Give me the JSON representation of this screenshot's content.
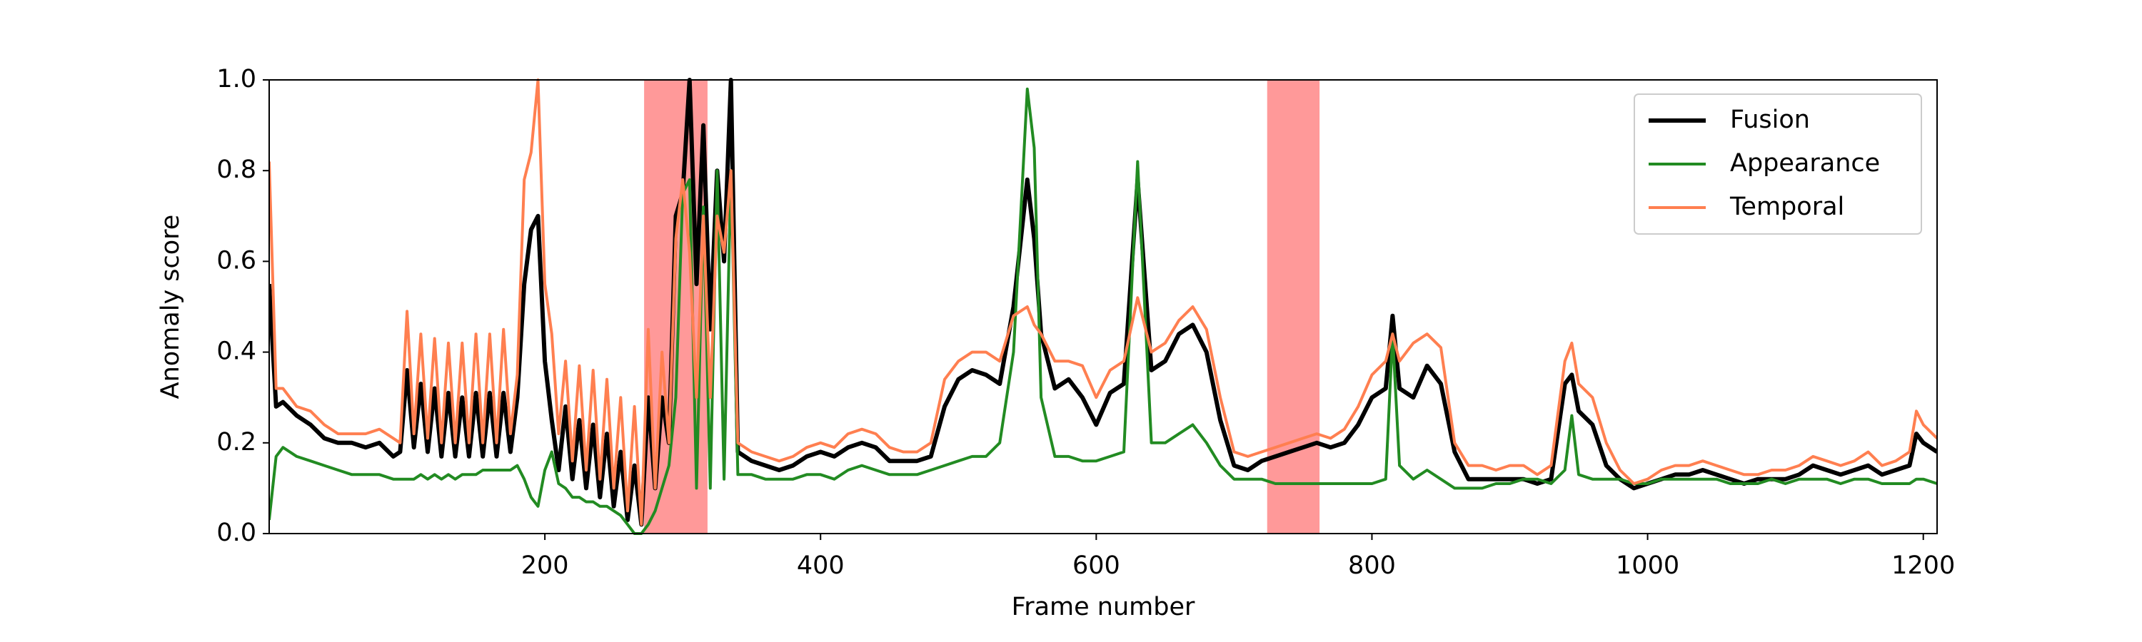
{
  "chart_data": {
    "type": "line",
    "x_label": "Frame number",
    "y_label": "Anomaly score",
    "x": [
      0,
      5,
      10,
      20,
      30,
      40,
      50,
      60,
      70,
      80,
      90,
      95,
      100,
      105,
      110,
      115,
      120,
      125,
      130,
      135,
      140,
      145,
      150,
      155,
      160,
      165,
      170,
      175,
      180,
      185,
      190,
      195,
      200,
      205,
      210,
      215,
      220,
      225,
      230,
      235,
      240,
      245,
      250,
      255,
      260,
      265,
      270,
      275,
      280,
      285,
      290,
      295,
      300,
      305,
      310,
      315,
      320,
      325,
      330,
      335,
      340,
      350,
      360,
      370,
      380,
      390,
      400,
      410,
      420,
      430,
      440,
      450,
      460,
      470,
      480,
      490,
      500,
      510,
      520,
      530,
      540,
      550,
      555,
      560,
      570,
      580,
      590,
      600,
      610,
      620,
      630,
      640,
      650,
      660,
      670,
      680,
      690,
      700,
      710,
      720,
      730,
      740,
      750,
      760,
      770,
      780,
      790,
      800,
      810,
      815,
      820,
      830,
      840,
      850,
      860,
      870,
      880,
      890,
      900,
      910,
      920,
      930,
      940,
      945,
      950,
      960,
      970,
      980,
      990,
      1000,
      1010,
      1020,
      1030,
      1040,
      1050,
      1060,
      1070,
      1080,
      1090,
      1100,
      1110,
      1120,
      1130,
      1140,
      1150,
      1160,
      1170,
      1180,
      1190,
      1195,
      1200,
      1210
    ],
    "series": [
      {
        "name": "Fusion",
        "color": "#000000",
        "width": 3,
        "values": [
          0.55,
          0.28,
          0.29,
          0.26,
          0.24,
          0.21,
          0.2,
          0.2,
          0.19,
          0.2,
          0.17,
          0.18,
          0.36,
          0.19,
          0.33,
          0.18,
          0.32,
          0.17,
          0.31,
          0.17,
          0.3,
          0.17,
          0.31,
          0.17,
          0.31,
          0.17,
          0.31,
          0.18,
          0.3,
          0.55,
          0.67,
          0.7,
          0.38,
          0.25,
          0.14,
          0.28,
          0.12,
          0.25,
          0.1,
          0.24,
          0.08,
          0.22,
          0.06,
          0.18,
          0.03,
          0.15,
          0.02,
          0.3,
          0.1,
          0.3,
          0.2,
          0.7,
          0.75,
          1.0,
          0.55,
          0.9,
          0.45,
          0.8,
          0.6,
          1.0,
          0.18,
          0.16,
          0.15,
          0.14,
          0.15,
          0.17,
          0.18,
          0.17,
          0.19,
          0.2,
          0.19,
          0.16,
          0.16,
          0.16,
          0.17,
          0.28,
          0.34,
          0.36,
          0.35,
          0.33,
          0.5,
          0.78,
          0.65,
          0.44,
          0.32,
          0.34,
          0.3,
          0.24,
          0.31,
          0.33,
          0.78,
          0.36,
          0.38,
          0.44,
          0.46,
          0.4,
          0.25,
          0.15,
          0.14,
          0.16,
          0.17,
          0.18,
          0.19,
          0.2,
          0.19,
          0.2,
          0.24,
          0.3,
          0.32,
          0.48,
          0.32,
          0.3,
          0.37,
          0.33,
          0.18,
          0.12,
          0.12,
          0.12,
          0.12,
          0.12,
          0.11,
          0.12,
          0.33,
          0.35,
          0.27,
          0.24,
          0.15,
          0.12,
          0.1,
          0.11,
          0.12,
          0.13,
          0.13,
          0.14,
          0.13,
          0.12,
          0.11,
          0.12,
          0.12,
          0.12,
          0.13,
          0.15,
          0.14,
          0.13,
          0.14,
          0.15,
          0.13,
          0.14,
          0.15,
          0.22,
          0.2,
          0.18
        ]
      },
      {
        "name": "Appearance",
        "color": "#228b22",
        "width": 2,
        "values": [
          0.03,
          0.17,
          0.19,
          0.17,
          0.16,
          0.15,
          0.14,
          0.13,
          0.13,
          0.13,
          0.12,
          0.12,
          0.12,
          0.12,
          0.13,
          0.12,
          0.13,
          0.12,
          0.13,
          0.12,
          0.13,
          0.13,
          0.13,
          0.14,
          0.14,
          0.14,
          0.14,
          0.14,
          0.15,
          0.12,
          0.08,
          0.06,
          0.14,
          0.18,
          0.11,
          0.1,
          0.08,
          0.08,
          0.07,
          0.07,
          0.06,
          0.06,
          0.05,
          0.04,
          0.02,
          0.0,
          0.0,
          0.02,
          0.05,
          0.1,
          0.15,
          0.3,
          0.75,
          0.78,
          0.1,
          0.72,
          0.1,
          0.8,
          0.12,
          0.8,
          0.13,
          0.13,
          0.12,
          0.12,
          0.12,
          0.13,
          0.13,
          0.12,
          0.14,
          0.15,
          0.14,
          0.13,
          0.13,
          0.13,
          0.14,
          0.15,
          0.16,
          0.17,
          0.17,
          0.2,
          0.4,
          0.98,
          0.85,
          0.3,
          0.17,
          0.17,
          0.16,
          0.16,
          0.17,
          0.18,
          0.82,
          0.2,
          0.2,
          0.22,
          0.24,
          0.2,
          0.15,
          0.12,
          0.12,
          0.12,
          0.11,
          0.11,
          0.11,
          0.11,
          0.11,
          0.11,
          0.11,
          0.11,
          0.12,
          0.44,
          0.15,
          0.12,
          0.14,
          0.12,
          0.1,
          0.1,
          0.1,
          0.11,
          0.11,
          0.12,
          0.12,
          0.11,
          0.14,
          0.26,
          0.13,
          0.12,
          0.12,
          0.12,
          0.11,
          0.11,
          0.12,
          0.12,
          0.12,
          0.12,
          0.12,
          0.11,
          0.11,
          0.11,
          0.12,
          0.11,
          0.12,
          0.12,
          0.12,
          0.11,
          0.12,
          0.12,
          0.11,
          0.11,
          0.11,
          0.12,
          0.12,
          0.11
        ]
      },
      {
        "name": "Temporal",
        "color": "#ff7f50",
        "width": 2,
        "values": [
          0.82,
          0.32,
          0.32,
          0.28,
          0.27,
          0.24,
          0.22,
          0.22,
          0.22,
          0.23,
          0.21,
          0.2,
          0.49,
          0.22,
          0.44,
          0.21,
          0.43,
          0.2,
          0.42,
          0.2,
          0.42,
          0.2,
          0.44,
          0.2,
          0.44,
          0.2,
          0.45,
          0.22,
          0.35,
          0.78,
          0.84,
          1.0,
          0.55,
          0.44,
          0.22,
          0.38,
          0.16,
          0.37,
          0.14,
          0.36,
          0.12,
          0.34,
          0.1,
          0.3,
          0.05,
          0.28,
          0.02,
          0.45,
          0.1,
          0.4,
          0.2,
          0.65,
          0.78,
          0.62,
          0.3,
          0.7,
          0.3,
          0.7,
          0.62,
          0.8,
          0.2,
          0.18,
          0.17,
          0.16,
          0.17,
          0.19,
          0.2,
          0.19,
          0.22,
          0.23,
          0.22,
          0.19,
          0.18,
          0.18,
          0.2,
          0.34,
          0.38,
          0.4,
          0.4,
          0.38,
          0.48,
          0.5,
          0.46,
          0.44,
          0.38,
          0.38,
          0.37,
          0.3,
          0.36,
          0.38,
          0.52,
          0.4,
          0.42,
          0.47,
          0.5,
          0.45,
          0.3,
          0.18,
          0.17,
          0.18,
          0.19,
          0.2,
          0.21,
          0.22,
          0.21,
          0.23,
          0.28,
          0.35,
          0.38,
          0.44,
          0.38,
          0.42,
          0.44,
          0.41,
          0.2,
          0.15,
          0.15,
          0.14,
          0.15,
          0.15,
          0.13,
          0.15,
          0.38,
          0.42,
          0.33,
          0.3,
          0.2,
          0.14,
          0.11,
          0.12,
          0.14,
          0.15,
          0.15,
          0.16,
          0.15,
          0.14,
          0.13,
          0.13,
          0.14,
          0.14,
          0.15,
          0.17,
          0.16,
          0.15,
          0.16,
          0.18,
          0.15,
          0.16,
          0.18,
          0.27,
          0.24,
          0.21
        ]
      }
    ],
    "highlight_regions": [
      [
        272,
        318
      ],
      [
        724,
        762
      ]
    ],
    "highlight_color": "#ff9999",
    "xlim": [
      0,
      1210
    ],
    "ylim": [
      0,
      1
    ],
    "xticks": [
      200,
      400,
      600,
      800,
      1000,
      1200
    ],
    "yticks": [
      {
        "value": 0,
        "label": "0.0"
      },
      0.2,
      0.4,
      0.6,
      0.8,
      {
        "value": 1,
        "label": "1.0"
      }
    ],
    "grid": false,
    "legend": "upper right"
  }
}
